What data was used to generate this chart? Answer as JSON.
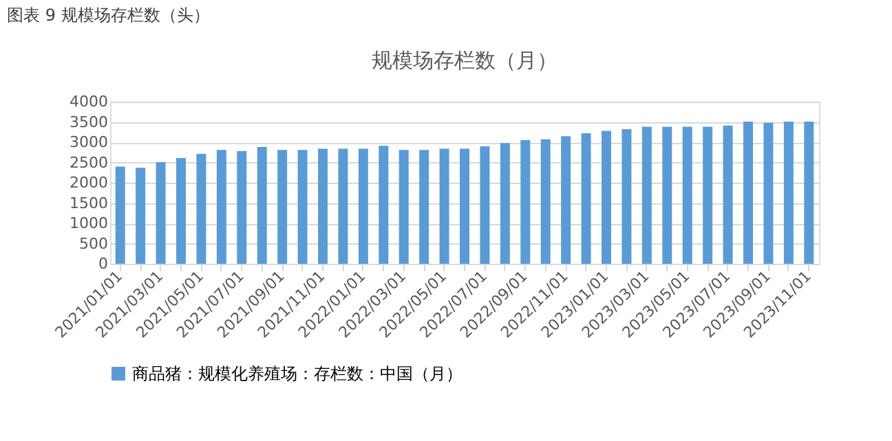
{
  "chart_data": {
    "type": "bar",
    "title": "规模场存栏数（月）",
    "annotations": [
      "图表 9  规模场存栏数（头）"
    ],
    "categories": [
      "2021/01/01",
      null,
      "2021/03/01",
      null,
      "2021/05/01",
      null,
      "2021/07/01",
      null,
      "2021/09/01",
      null,
      "2021/11/01",
      null,
      "2022/01/01",
      null,
      "2022/03/01",
      null,
      "2022/05/01",
      null,
      "2022/07/01",
      null,
      "2022/09/01",
      null,
      "2022/11/01",
      null,
      "2023/01/01",
      null,
      "2023/03/01",
      null,
      "2023/05/01",
      null,
      "2023/07/01",
      null,
      "2023/09/01",
      null,
      "2023/11/01"
    ],
    "series": [
      {
        "name": "商品猪：规模化养殖场：存栏数：中国（月）",
        "color": "#5b9bd5",
        "values": [
          2400,
          2370,
          2510,
          2610,
          2710,
          2810,
          2780,
          2880,
          2810,
          2810,
          2840,
          2840,
          2840,
          2910,
          2810,
          2810,
          2840,
          2840,
          2900,
          2980,
          3050,
          3070,
          3150,
          3220,
          3280,
          3320,
          3380,
          3380,
          3380,
          3380,
          3410,
          3510,
          3480,
          3510,
          3510
        ]
      }
    ],
    "ylim": [
      0,
      4000
    ],
    "yticks": [
      0,
      500,
      1000,
      1500,
      2000,
      2500,
      3000,
      3500,
      4000
    ],
    "grid": "y",
    "legend": "bottom"
  }
}
